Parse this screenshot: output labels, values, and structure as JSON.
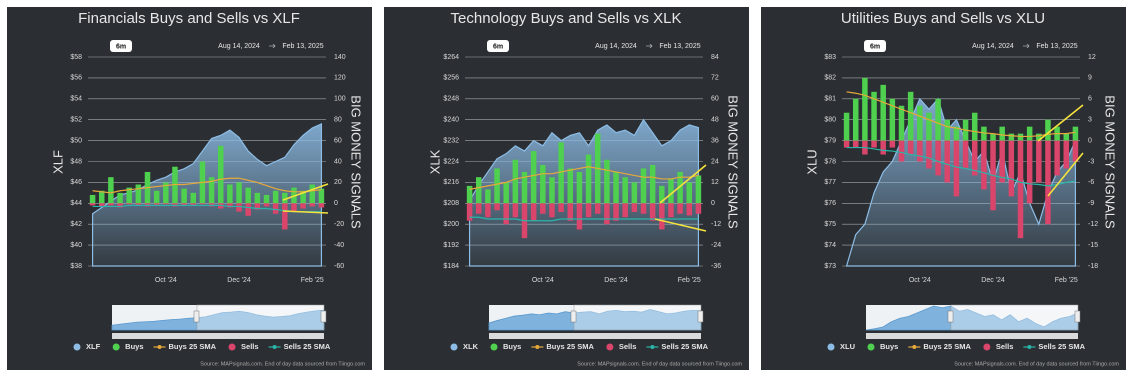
{
  "chart_data": [
    {
      "type": "combo",
      "title": "Financials Buys and Sells vs XLF",
      "range_button": "6m",
      "start_date": "Aug 14, 2024",
      "end_date": "Feb 13, 2025",
      "ylabel": "XLF",
      "y2label": "BIG MONEY SIGNALS",
      "categories": [
        null,
        null,
        null,
        null,
        null,
        null,
        null,
        null,
        "Oct '24",
        null,
        null,
        null,
        null,
        null,
        null,
        null,
        "Dec '24",
        null,
        null,
        null,
        null,
        null,
        null,
        null,
        "Feb '25",
        null
      ],
      "series": [
        {
          "name": "XLF",
          "color": "#8dbde6",
          "kind": "area",
          "axis": "y",
          "values": [
            43.0,
            43.6,
            44.2,
            44.8,
            45.0,
            45.3,
            45.8,
            46.2,
            46.5,
            47.0,
            47.3,
            47.8,
            49.0,
            50.2,
            50.5,
            51.0,
            50.3,
            49.0,
            48.2,
            47.6,
            48.0,
            48.4,
            49.6,
            50.5,
            51.2,
            51.6
          ]
        },
        {
          "name": "Buys",
          "color": "#4fd04f",
          "kind": "bar",
          "axis": "y2",
          "values": [
            8,
            12,
            25,
            10,
            15,
            18,
            30,
            12,
            20,
            35,
            14,
            10,
            40,
            25,
            55,
            18,
            20,
            15,
            10,
            8,
            12,
            10,
            15,
            12,
            18,
            14
          ]
        },
        {
          "name": "Buys 25 SMA",
          "color": "#e8a93a",
          "kind": "line",
          "axis": "y2",
          "values": [
            12,
            11,
            10,
            12,
            13,
            14,
            15,
            16,
            17,
            18,
            18,
            19,
            20,
            21,
            23,
            24,
            24,
            22,
            20,
            17,
            14,
            12,
            11,
            11,
            12,
            13
          ]
        },
        {
          "name": "Sells",
          "color": "#d9456b",
          "kind": "bar",
          "axis": "y2",
          "values": [
            -2,
            -3,
            -2,
            -4,
            -1,
            -2,
            -3,
            -2,
            -1,
            -3,
            -2,
            -2,
            -1,
            -3,
            -5,
            -4,
            -8,
            -12,
            -6,
            -3,
            -10,
            -25,
            -8,
            -5,
            -3,
            -4
          ]
        },
        {
          "name": "Sells 25 SMA",
          "color": "#2bb5a8",
          "kind": "line",
          "axis": "y2",
          "values": [
            -3,
            -3,
            -3,
            -3,
            -2,
            -2,
            -2,
            -2,
            -2,
            -2,
            -2,
            -2,
            -2,
            -2,
            -2,
            -3,
            -3,
            -4,
            -5,
            -5,
            -6,
            -7,
            -8,
            -8,
            -8,
            -8
          ]
        }
      ],
      "ylim": [
        38,
        58
      ],
      "yticks": [
        {
          "value": 38,
          "label": "$38"
        },
        {
          "value": 40,
          "label": "$40"
        },
        {
          "value": 42,
          "label": "$42"
        },
        {
          "value": 44,
          "label": "$44"
        },
        {
          "value": 46,
          "label": "$46"
        },
        {
          "value": 48,
          "label": "$48"
        },
        {
          "value": 50,
          "label": "$50"
        },
        {
          "value": 52,
          "label": "$52"
        },
        {
          "value": 54,
          "label": "$54"
        },
        {
          "value": 56,
          "label": "$56"
        },
        {
          "value": 58,
          "label": "$58"
        }
      ],
      "y2lim": [
        -60,
        140
      ],
      "y2ticks": [
        -60,
        -40,
        -20,
        0,
        20,
        40,
        60,
        80,
        100,
        120,
        140
      ],
      "grid": true,
      "source": "Source: MAPsignals.com. End of day data sourced from Tiingo.com"
    },
    {
      "type": "combo",
      "title": "Technology Buys and Sells vs XLK",
      "range_button": "6m",
      "start_date": "Aug 14, 2024",
      "end_date": "Feb 13, 2025",
      "ylabel": "XLK",
      "y2label": "BIG MONEY SIGNALS",
      "categories": [
        null,
        null,
        null,
        null,
        null,
        null,
        null,
        null,
        "Oct '24",
        null,
        null,
        null,
        null,
        null,
        null,
        null,
        "Dec '24",
        null,
        null,
        null,
        null,
        null,
        null,
        null,
        "Feb '25",
        null
      ],
      "series": [
        {
          "name": "XLK",
          "color": "#8dbde6",
          "kind": "area",
          "axis": "y",
          "values": [
            209,
            215,
            220,
            225,
            227,
            230,
            228,
            232,
            230,
            235,
            232,
            234,
            235,
            230,
            236,
            238,
            235,
            236,
            234,
            240,
            235,
            230,
            232,
            236,
            238,
            237
          ]
        },
        {
          "name": "Buys",
          "color": "#4fd04f",
          "kind": "bar",
          "axis": "y2",
          "values": [
            10,
            15,
            8,
            20,
            12,
            25,
            18,
            30,
            22,
            15,
            35,
            20,
            18,
            28,
            40,
            25,
            18,
            15,
            12,
            20,
            22,
            10,
            14,
            18,
            12,
            16
          ]
        },
        {
          "name": "Buys 25 SMA",
          "color": "#e8a93a",
          "kind": "line",
          "axis": "y2",
          "values": [
            8,
            9,
            10,
            11,
            12,
            14,
            15,
            16,
            17,
            17,
            18,
            19,
            20,
            21,
            20,
            19,
            18,
            17,
            16,
            15,
            15,
            14,
            14,
            15,
            15,
            16
          ]
        },
        {
          "name": "Sells",
          "color": "#d9456b",
          "kind": "bar",
          "axis": "y2",
          "values": [
            -10,
            -6,
            -8,
            -4,
            -12,
            -8,
            -20,
            -10,
            -6,
            -8,
            -5,
            -10,
            -15,
            -8,
            -6,
            -12,
            -10,
            -8,
            -5,
            -6,
            -10,
            -15,
            -8,
            -6,
            -7,
            -6
          ]
        },
        {
          "name": "Sells 25 SMA",
          "color": "#2bb5a8",
          "kind": "line",
          "axis": "y2",
          "values": [
            -8,
            -8,
            -9,
            -9,
            -9,
            -9,
            -10,
            -10,
            -10,
            -10,
            -9,
            -9,
            -9,
            -9,
            -9,
            -9,
            -9,
            -9,
            -9,
            -9,
            -9,
            -9,
            -9,
            -9,
            -9,
            -9
          ]
        }
      ],
      "ylim": [
        184,
        264
      ],
      "yticks": [
        {
          "value": 184,
          "label": "$184"
        },
        {
          "value": 192,
          "label": "$192"
        },
        {
          "value": 200,
          "label": "$200"
        },
        {
          "value": 208,
          "label": "$208"
        },
        {
          "value": 216,
          "label": "$216"
        },
        {
          "value": 224,
          "label": "$224"
        },
        {
          "value": 232,
          "label": "$232"
        },
        {
          "value": 240,
          "label": "$240"
        },
        {
          "value": 248,
          "label": "$248"
        },
        {
          "value": 256,
          "label": "$256"
        },
        {
          "value": 264,
          "label": "$264"
        }
      ],
      "y2lim": [
        -36,
        84
      ],
      "y2ticks": [
        -36,
        -24,
        -12,
        0,
        12,
        24,
        36,
        48,
        60,
        72,
        84
      ],
      "grid": true,
      "source": "Source: MAPsignals.com. End of day data sourced from Tiingo.com"
    },
    {
      "type": "combo",
      "title": "Utilities Buys and Sells vs XLU",
      "range_button": "6m",
      "start_date": "Aug 14, 2024",
      "end_date": "Feb 13, 2025",
      "ylabel": "XLU",
      "y2label": "BIG MONEY SIGNALS",
      "categories": [
        null,
        null,
        null,
        null,
        null,
        null,
        null,
        null,
        "Oct '24",
        null,
        null,
        null,
        null,
        null,
        null,
        null,
        "Dec '24",
        null,
        null,
        null,
        null,
        null,
        null,
        null,
        "Feb '25",
        null
      ],
      "series": [
        {
          "name": "XLU",
          "color": "#8dbde6",
          "kind": "area",
          "axis": "y",
          "values": [
            73,
            74.5,
            75,
            76.5,
            77.5,
            78,
            79,
            80,
            81,
            80.5,
            81,
            79.5,
            80,
            79,
            78,
            78.5,
            77,
            78.5,
            76.5,
            77.5,
            76,
            75,
            76.5,
            77.5,
            78,
            79
          ]
        },
        {
          "name": "Buys",
          "color": "#4fd04f",
          "kind": "bar",
          "axis": "y2",
          "values": [
            4,
            6,
            9,
            7,
            8,
            6,
            5,
            7,
            5,
            4,
            6,
            3,
            2,
            3,
            4,
            2,
            1,
            2,
            1,
            1,
            2,
            1,
            3,
            2,
            1,
            2
          ]
        },
        {
          "name": "Buys 25 SMA",
          "color": "#e8a93a",
          "kind": "line",
          "axis": "y2",
          "values": [
            7,
            6.8,
            6.5,
            6,
            5.5,
            5,
            4.5,
            4,
            3.5,
            3,
            2.5,
            2,
            1.8,
            1.5,
            1.3,
            1.1,
            1,
            0.8,
            0.7,
            0.6,
            0.6,
            0.7,
            0.9,
            1,
            1,
            1.2
          ]
        },
        {
          "name": "Sells",
          "color": "#d9456b",
          "kind": "bar",
          "axis": "y2",
          "values": [
            -1,
            -1,
            -2,
            -1,
            -2,
            -1,
            -3,
            -2,
            -3,
            -4,
            -5,
            -6,
            -8,
            -4,
            -5,
            -7,
            -10,
            -6,
            -8,
            -14,
            -9,
            -6,
            -12,
            -5,
            -4,
            -3
          ]
        },
        {
          "name": "Sells 25 SMA",
          "color": "#2bb5a8",
          "kind": "line",
          "axis": "y2",
          "values": [
            -1,
            -1,
            -1,
            -1.2,
            -1.4,
            -1.5,
            -1.7,
            -2,
            -2.2,
            -2.5,
            -3,
            -3.4,
            -3.8,
            -4,
            -4.3,
            -4.6,
            -5,
            -5.3,
            -5.5,
            -6,
            -6.2,
            -6.3,
            -6.5,
            -6.3,
            -6,
            -5.8
          ]
        }
      ],
      "ylim": [
        73,
        83
      ],
      "yticks": [
        {
          "value": 73,
          "label": "$73"
        },
        {
          "value": 74,
          "label": "$74"
        },
        {
          "value": 75,
          "label": "$75"
        },
        {
          "value": 76,
          "label": "$76"
        },
        {
          "value": 77,
          "label": "$77"
        },
        {
          "value": 78,
          "label": "$78"
        },
        {
          "value": 79,
          "label": "$79"
        },
        {
          "value": 80,
          "label": "$80"
        },
        {
          "value": 81,
          "label": "$81"
        },
        {
          "value": 82,
          "label": "$82"
        },
        {
          "value": 83,
          "label": "$83"
        }
      ],
      "y2lim": [
        -18,
        12
      ],
      "y2ticks": [
        -18,
        -15,
        -12,
        -9,
        -6,
        -3,
        0,
        3,
        6,
        9,
        12
      ],
      "grid": true,
      "source": "Source: MAPsignals.com. End of day data sourced from Tiingo.com"
    }
  ]
}
